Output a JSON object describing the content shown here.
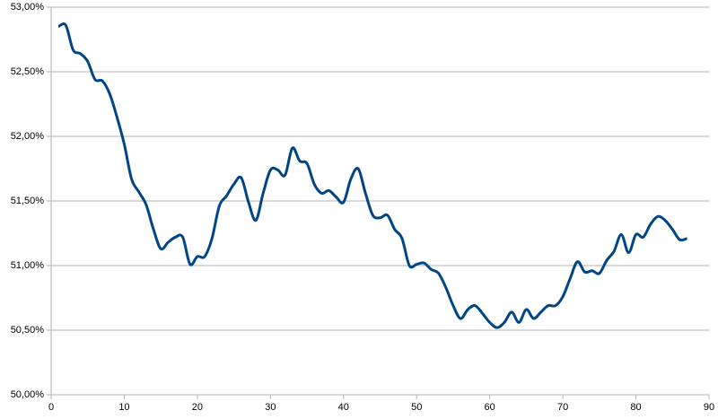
{
  "chart_data": {
    "type": "line",
    "x": [
      1,
      2,
      3,
      4,
      5,
      6,
      7,
      8,
      9,
      10,
      11,
      12,
      13,
      14,
      15,
      16,
      17,
      18,
      19,
      20,
      21,
      22,
      23,
      24,
      25,
      26,
      27,
      28,
      29,
      30,
      31,
      32,
      33,
      34,
      35,
      36,
      37,
      38,
      39,
      40,
      41,
      42,
      43,
      44,
      45,
      46,
      47,
      48,
      49,
      50,
      51,
      52,
      53,
      54,
      55,
      56,
      57,
      58,
      59,
      60,
      61,
      62,
      63,
      64,
      65,
      66,
      67,
      68,
      69,
      70,
      71,
      72,
      73,
      74,
      75,
      76,
      77,
      78,
      79,
      80,
      81,
      82,
      83,
      84,
      85,
      86,
      87
    ],
    "series": [
      {
        "color": "#004586",
        "values": [
          52.85,
          52.86,
          52.67,
          52.64,
          52.58,
          52.44,
          52.43,
          52.33,
          52.15,
          51.94,
          51.67,
          51.57,
          51.47,
          51.28,
          51.13,
          51.18,
          51.22,
          51.22,
          51.01,
          51.07,
          51.07,
          51.21,
          51.46,
          51.54,
          51.63,
          51.68,
          51.49,
          51.35,
          51.56,
          51.74,
          51.74,
          51.7,
          51.91,
          51.81,
          51.79,
          51.63,
          51.56,
          51.58,
          51.53,
          51.49,
          51.67,
          51.75,
          51.56,
          51.39,
          51.37,
          51.39,
          51.28,
          51.21,
          51.0,
          51.01,
          51.02,
          50.97,
          50.94,
          50.83,
          50.69,
          50.59,
          50.66,
          50.69,
          50.63,
          50.56,
          50.52,
          50.56,
          50.64,
          50.56,
          50.66,
          50.59,
          50.64,
          50.69,
          50.69,
          50.76,
          50.9,
          51.03,
          50.95,
          50.96,
          50.94,
          51.04,
          51.11,
          51.24,
          51.1,
          51.24,
          51.22,
          51.32,
          51.38,
          51.35,
          51.28,
          51.2,
          51.21
        ]
      }
    ],
    "xlim": [
      0,
      90
    ],
    "xticks": [
      0,
      10,
      20,
      30,
      40,
      50,
      60,
      70,
      80,
      90
    ],
    "ylim": [
      50,
      53
    ],
    "yticks": [
      {
        "value": 50,
        "label": "50,00%"
      },
      {
        "value": 50.5,
        "label": "50,50%"
      },
      {
        "value": 51,
        "label": "51,00%"
      },
      {
        "value": 51.5,
        "label": "51,50%"
      },
      {
        "value": 52,
        "label": "52,00%"
      },
      {
        "value": 52.5,
        "label": "52,50%"
      },
      {
        "value": 53,
        "label": "53,00%"
      }
    ],
    "grid": true
  }
}
